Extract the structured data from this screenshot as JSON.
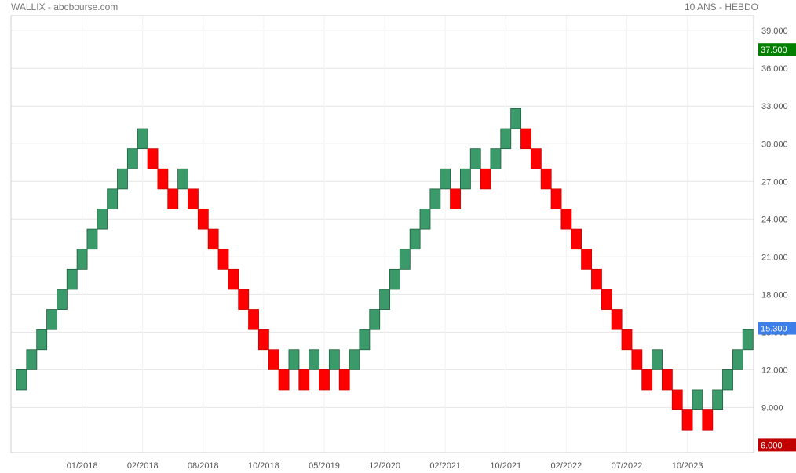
{
  "header": {
    "left": "WALLIX - abcbourse.com",
    "right": "10 ANS - HEBDO"
  },
  "colors": {
    "up": "#3a9a6a",
    "down": "#ff0000",
    "grid": "#e6e6e6",
    "badge_high": "#008000",
    "badge_last": "#3d7ee8",
    "badge_low": "#c00000"
  },
  "chart_data": {
    "type": "renko",
    "title": "WALLIX",
    "xlabel": "",
    "ylabel": "",
    "ylim": [
      5.4,
      40.2
    ],
    "brick_size": 1.6,
    "y_ticks": [
      "9.000",
      "12.000",
      "15.000",
      "18.000",
      "21.000",
      "24.000",
      "27.000",
      "30.000",
      "33.000",
      "36.000",
      "39.000"
    ],
    "x_ticks": [
      {
        "label": "01/2018",
        "brick_index": 6
      },
      {
        "label": "02/2018",
        "brick_index": 12
      },
      {
        "label": "08/2018",
        "brick_index": 18
      },
      {
        "label": "10/2018",
        "brick_index": 24
      },
      {
        "label": "05/2019",
        "brick_index": 30
      },
      {
        "label": "12/2020",
        "brick_index": 36
      },
      {
        "label": "02/2021",
        "brick_index": 42
      },
      {
        "label": "10/2021",
        "brick_index": 48
      },
      {
        "label": "02/2022",
        "brick_index": 54
      },
      {
        "label": "07/2022",
        "brick_index": 60
      },
      {
        "label": "10/2023",
        "brick_index": 66
      }
    ],
    "badges": {
      "high": "37.500",
      "last": "15.300",
      "low": "6.000"
    },
    "bricks": [
      {
        "dir": "up",
        "low": 10.4,
        "high": 12.0
      },
      {
        "dir": "up",
        "low": 12.0,
        "high": 13.6
      },
      {
        "dir": "up",
        "low": 13.6,
        "high": 15.2
      },
      {
        "dir": "up",
        "low": 15.2,
        "high": 16.8
      },
      {
        "dir": "up",
        "low": 16.8,
        "high": 18.4
      },
      {
        "dir": "up",
        "low": 18.4,
        "high": 20.0
      },
      {
        "dir": "up",
        "low": 20.0,
        "high": 21.6
      },
      {
        "dir": "up",
        "low": 21.6,
        "high": 23.2
      },
      {
        "dir": "up",
        "low": 23.2,
        "high": 24.8
      },
      {
        "dir": "up",
        "low": 24.8,
        "high": 26.4
      },
      {
        "dir": "up",
        "low": 26.4,
        "high": 28.0
      },
      {
        "dir": "up",
        "low": 28.0,
        "high": 29.6
      },
      {
        "dir": "up",
        "low": 29.6,
        "high": 31.2
      },
      {
        "dir": "down",
        "low": 28.0,
        "high": 29.6
      },
      {
        "dir": "down",
        "low": 26.4,
        "high": 28.0
      },
      {
        "dir": "down",
        "low": 24.8,
        "high": 26.4
      },
      {
        "dir": "up",
        "low": 26.4,
        "high": 28.0
      },
      {
        "dir": "down",
        "low": 24.8,
        "high": 26.4
      },
      {
        "dir": "down",
        "low": 23.2,
        "high": 24.8
      },
      {
        "dir": "down",
        "low": 21.6,
        "high": 23.2
      },
      {
        "dir": "down",
        "low": 20.0,
        "high": 21.6
      },
      {
        "dir": "down",
        "low": 18.4,
        "high": 20.0
      },
      {
        "dir": "down",
        "low": 16.8,
        "high": 18.4
      },
      {
        "dir": "down",
        "low": 15.2,
        "high": 16.8
      },
      {
        "dir": "down",
        "low": 13.6,
        "high": 15.2
      },
      {
        "dir": "down",
        "low": 12.0,
        "high": 13.6
      },
      {
        "dir": "down",
        "low": 10.4,
        "high": 12.0
      },
      {
        "dir": "up",
        "low": 12.0,
        "high": 13.6
      },
      {
        "dir": "down",
        "low": 10.4,
        "high": 12.0
      },
      {
        "dir": "up",
        "low": 12.0,
        "high": 13.6
      },
      {
        "dir": "down",
        "low": 10.4,
        "high": 12.0
      },
      {
        "dir": "up",
        "low": 12.0,
        "high": 13.6
      },
      {
        "dir": "down",
        "low": 10.4,
        "high": 12.0
      },
      {
        "dir": "up",
        "low": 12.0,
        "high": 13.6
      },
      {
        "dir": "up",
        "low": 13.6,
        "high": 15.2
      },
      {
        "dir": "up",
        "low": 15.2,
        "high": 16.8
      },
      {
        "dir": "up",
        "low": 16.8,
        "high": 18.4
      },
      {
        "dir": "up",
        "low": 18.4,
        "high": 20.0
      },
      {
        "dir": "up",
        "low": 20.0,
        "high": 21.6
      },
      {
        "dir": "up",
        "low": 21.6,
        "high": 23.2
      },
      {
        "dir": "up",
        "low": 23.2,
        "high": 24.8
      },
      {
        "dir": "up",
        "low": 24.8,
        "high": 26.4
      },
      {
        "dir": "up",
        "low": 26.4,
        "high": 28.0
      },
      {
        "dir": "down",
        "low": 24.8,
        "high": 26.4
      },
      {
        "dir": "up",
        "low": 26.4,
        "high": 28.0
      },
      {
        "dir": "up",
        "low": 28.0,
        "high": 29.6
      },
      {
        "dir": "down",
        "low": 26.4,
        "high": 28.0
      },
      {
        "dir": "up",
        "low": 28.0,
        "high": 29.6
      },
      {
        "dir": "up",
        "low": 29.6,
        "high": 31.2
      },
      {
        "dir": "up",
        "low": 31.2,
        "high": 32.8
      },
      {
        "dir": "down",
        "low": 29.6,
        "high": 31.2
      },
      {
        "dir": "down",
        "low": 28.0,
        "high": 29.6
      },
      {
        "dir": "down",
        "low": 26.4,
        "high": 28.0
      },
      {
        "dir": "down",
        "low": 24.8,
        "high": 26.4
      },
      {
        "dir": "down",
        "low": 23.2,
        "high": 24.8
      },
      {
        "dir": "down",
        "low": 21.6,
        "high": 23.2
      },
      {
        "dir": "down",
        "low": 20.0,
        "high": 21.6
      },
      {
        "dir": "down",
        "low": 18.4,
        "high": 20.0
      },
      {
        "dir": "down",
        "low": 16.8,
        "high": 18.4
      },
      {
        "dir": "down",
        "low": 15.2,
        "high": 16.8
      },
      {
        "dir": "down",
        "low": 13.6,
        "high": 15.2
      },
      {
        "dir": "down",
        "low": 12.0,
        "high": 13.6
      },
      {
        "dir": "down",
        "low": 10.4,
        "high": 12.0
      },
      {
        "dir": "up",
        "low": 12.0,
        "high": 13.6
      },
      {
        "dir": "down",
        "low": 10.4,
        "high": 12.0
      },
      {
        "dir": "down",
        "low": 8.8,
        "high": 10.4
      },
      {
        "dir": "down",
        "low": 7.2,
        "high": 8.8
      },
      {
        "dir": "up",
        "low": 8.8,
        "high": 10.4
      },
      {
        "dir": "down",
        "low": 7.2,
        "high": 8.8
      },
      {
        "dir": "up",
        "low": 8.8,
        "high": 10.4
      },
      {
        "dir": "up",
        "low": 10.4,
        "high": 12.0
      },
      {
        "dir": "up",
        "low": 12.0,
        "high": 13.6
      },
      {
        "dir": "up",
        "low": 13.6,
        "high": 15.2
      }
    ]
  }
}
